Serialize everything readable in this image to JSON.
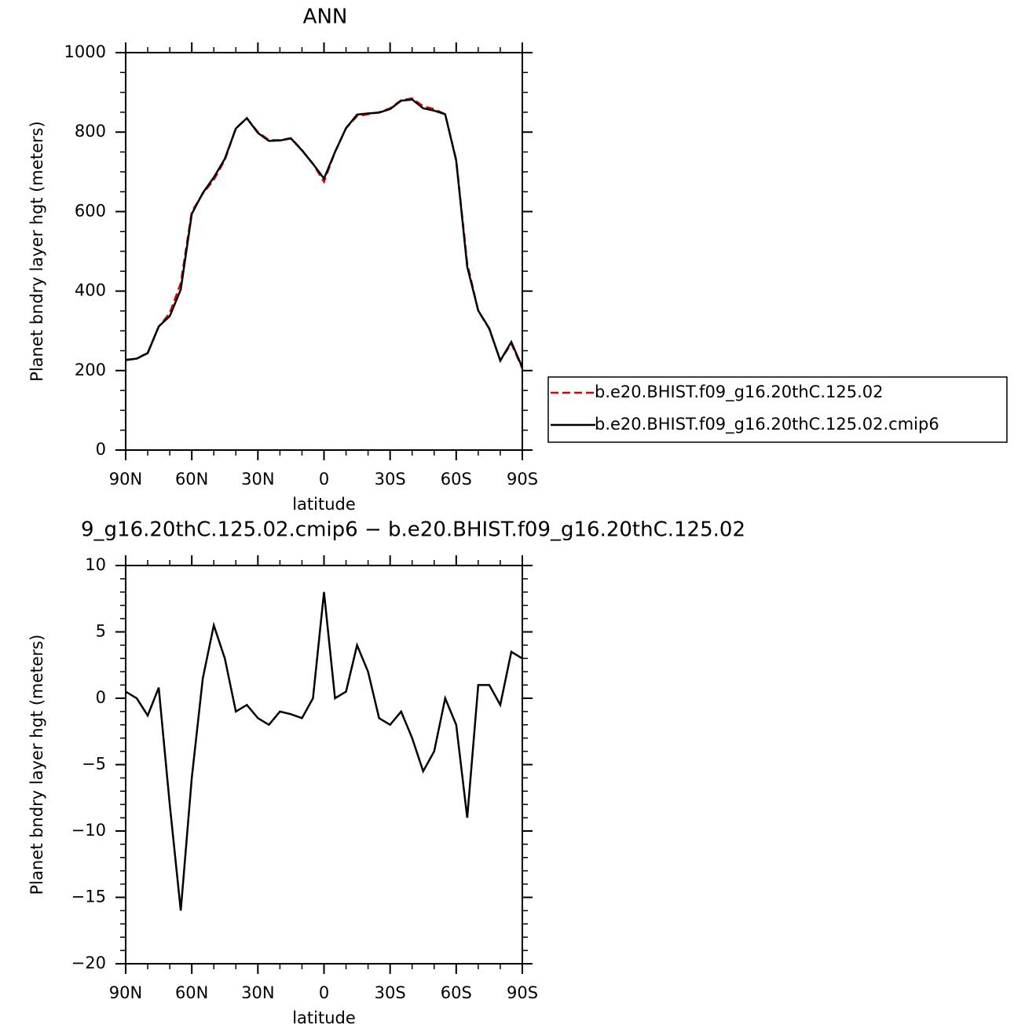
{
  "chart_data": [
    {
      "type": "line",
      "title": "ANN",
      "x_label": "latitude",
      "y_label": "Planet bndry layer hgt (meters)",
      "x": [
        90,
        85,
        80,
        75,
        70,
        65,
        60,
        55,
        50,
        45,
        40,
        35,
        30,
        25,
        20,
        15,
        10,
        5,
        0,
        -5,
        -10,
        -15,
        -20,
        -25,
        -30,
        -35,
        -40,
        -45,
        -50,
        -55,
        -60,
        -65,
        -70,
        -75,
        -80,
        -85,
        -90
      ],
      "series": [
        {
          "name": "b.e20.BHIST.f09_g16.20thC.125.02",
          "color": "#e00000",
          "dashed": true,
          "values": [
            226,
            230,
            245,
            310,
            345,
            420,
            600,
            645,
            680,
            730,
            810,
            835,
            800,
            780,
            780,
            785,
            755,
            720,
            675,
            750,
            810,
            840,
            845,
            850,
            860,
            880,
            885,
            865,
            858,
            845,
            730,
            470,
            350,
            305,
            225,
            268,
            205
          ]
        },
        {
          "name": "b.e20.BHIST.f09_g16.20thC.125.02.cmip6",
          "color": "#000000",
          "dashed": false,
          "values": [
            227,
            230,
            244,
            311,
            337,
            404,
            594,
            647,
            686,
            733,
            809,
            835,
            798,
            778,
            779,
            784,
            754,
            720,
            683,
            750,
            810,
            844,
            847,
            849,
            858,
            879,
            882,
            860,
            854,
            845,
            728,
            461,
            351,
            306,
            225,
            272,
            208
          ]
        }
      ],
      "xlim": [
        90,
        -90
      ],
      "xticks": [
        {
          "value": 90,
          "label": "90N"
        },
        {
          "value": 60,
          "label": "60N"
        },
        {
          "value": 30,
          "label": "30N"
        },
        0,
        {
          "value": -30,
          "label": "30S"
        },
        {
          "value": -60,
          "label": "60S"
        },
        {
          "value": -90,
          "label": "90S"
        }
      ],
      "ylim": [
        0,
        1000
      ],
      "yticks": [
        0,
        200,
        400,
        600,
        800,
        1000
      ],
      "legend": "outside right"
    },
    {
      "type": "line",
      "title": "9_g16.20thC.125.02.cmip6 − b.e20.BHIST.f09_g16.20thC.125.02",
      "x_label": "latitude",
      "y_label": "Planet bndry layer hgt (meters)",
      "x": [
        90,
        85,
        80,
        75,
        70,
        65,
        60,
        55,
        50,
        45,
        40,
        35,
        30,
        25,
        20,
        15,
        10,
        5,
        0,
        -5,
        -10,
        -15,
        -20,
        -25,
        -30,
        -35,
        -40,
        -45,
        -50,
        -55,
        -60,
        -65,
        -70,
        -75,
        -80,
        -85,
        -90
      ],
      "series": [
        {
          "color": "#000000",
          "dashed": false,
          "values": [
            0.5,
            0,
            -1.3,
            0.8,
            -8,
            -16,
            -6,
            1.5,
            5.5,
            3,
            -1,
            -0.5,
            -1.5,
            -2,
            -1,
            -1.2,
            -1.5,
            0,
            8,
            0,
            0.5,
            4,
            2,
            -1.5,
            -2,
            -1,
            -3,
            -5.5,
            -4,
            0,
            -2,
            -9,
            1,
            1,
            -0.5,
            3.5,
            3
          ]
        }
      ],
      "xlim": [
        90,
        -90
      ],
      "xticks": [
        {
          "value": 90,
          "label": "90N"
        },
        {
          "value": 60,
          "label": "60N"
        },
        {
          "value": 30,
          "label": "30N"
        },
        0,
        {
          "value": -30,
          "label": "30S"
        },
        {
          "value": -60,
          "label": "60S"
        },
        {
          "value": -90,
          "label": "90S"
        }
      ],
      "ylim": [
        -20,
        10
      ],
      "yticks": [
        {
          "value": -20,
          "label": "−20"
        },
        {
          "value": -15,
          "label": "−15"
        },
        {
          "value": -10,
          "label": "−10"
        },
        {
          "value": -5,
          "label": "−5"
        },
        0,
        5,
        10
      ]
    }
  ]
}
